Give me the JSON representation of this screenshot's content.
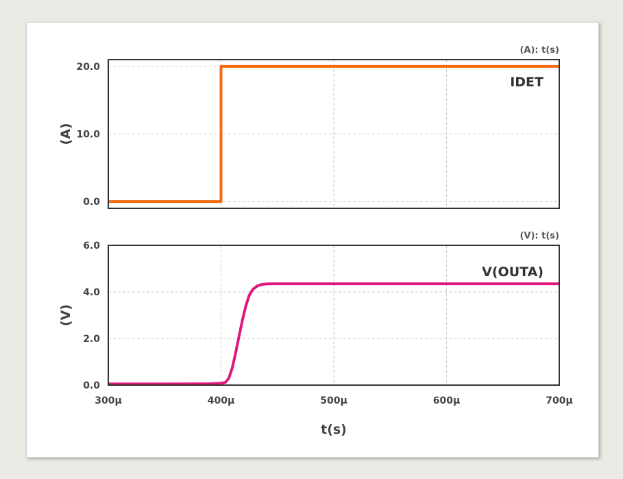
{
  "chart_data": [
    {
      "type": "line",
      "corner_label": "(A): t(s)",
      "ylabel": "(A)",
      "xlim": [
        300,
        700
      ],
      "ylim": [
        -1,
        21
      ],
      "yticks": [
        0,
        10,
        20
      ],
      "ytick_labels": [
        "0.0",
        "10.0",
        "20.0"
      ],
      "xticks": [
        300,
        400,
        500,
        600,
        700
      ],
      "series": [
        {
          "name": "IDET",
          "color": "#f26b0f",
          "x": [
            300,
            400,
            400,
            700
          ],
          "y": [
            0,
            0,
            20,
            20
          ]
        }
      ]
    },
    {
      "type": "line",
      "corner_label": "(V): t(s)",
      "ylabel": "(V)",
      "xlabel": "t(s)",
      "xlim": [
        300,
        700
      ],
      "ylim": [
        0,
        6
      ],
      "yticks": [
        0,
        2,
        4,
        6
      ],
      "ytick_labels": [
        "0.0",
        "2.0",
        "4.0",
        "6.0"
      ],
      "xticks": [
        300,
        400,
        500,
        600,
        700
      ],
      "xtick_labels": [
        "300µ",
        "400µ",
        "500µ",
        "600µ",
        "700µ"
      ],
      "series": [
        {
          "name": "V(OUTA)",
          "color": "#e0177f",
          "x": [
            300,
            350,
            390,
            400,
            404,
            407,
            410,
            413,
            416,
            419,
            422,
            425,
            428,
            432,
            436,
            440,
            445,
            450,
            500,
            600,
            700
          ],
          "y": [
            0.05,
            0.05,
            0.06,
            0.08,
            0.12,
            0.3,
            0.75,
            1.4,
            2.1,
            2.8,
            3.4,
            3.85,
            4.1,
            4.25,
            4.32,
            4.34,
            4.35,
            4.35,
            4.35,
            4.35,
            4.35
          ]
        }
      ]
    }
  ]
}
